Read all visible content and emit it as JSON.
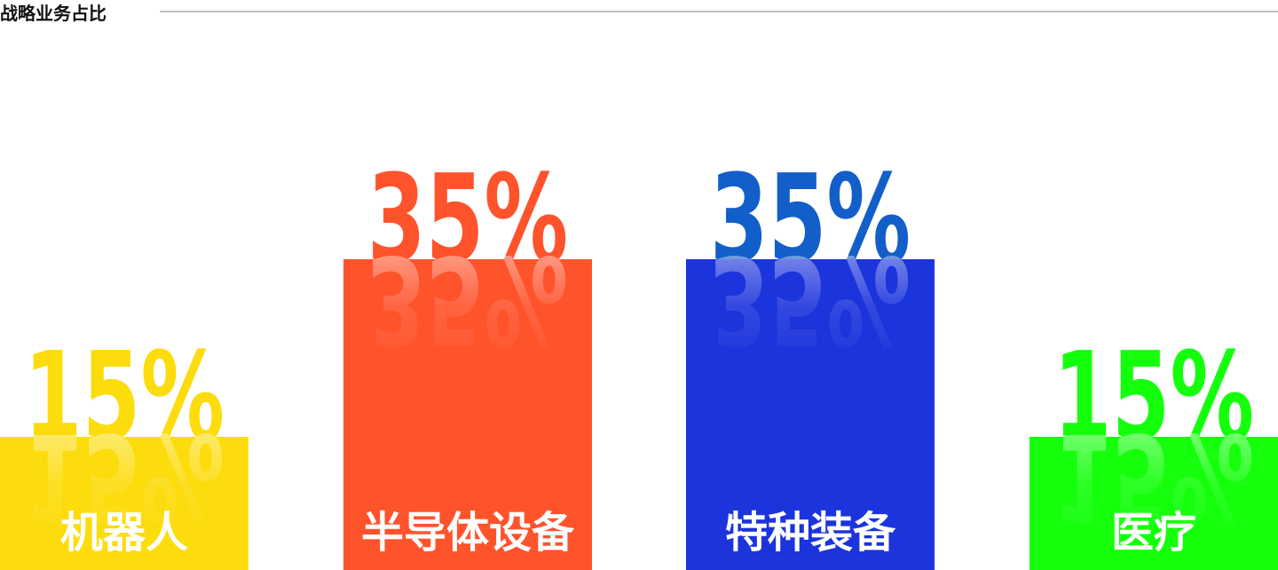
{
  "chart_data": {
    "type": "bar",
    "title": "战略业务占比",
    "categories": [
      "机器人",
      "半导体设备",
      "特种装备",
      "医疗"
    ],
    "values": [
      15,
      35,
      35,
      15
    ],
    "value_labels": [
      "15%",
      "35%",
      "35%",
      "15%"
    ],
    "colors": [
      "#fcdc0c",
      "#ff532c",
      "#1c34dc",
      "#15ff0d"
    ],
    "label_colors": [
      "#fcdc0c",
      "#ff532c",
      "#135fc9",
      "#15ff0d"
    ]
  }
}
